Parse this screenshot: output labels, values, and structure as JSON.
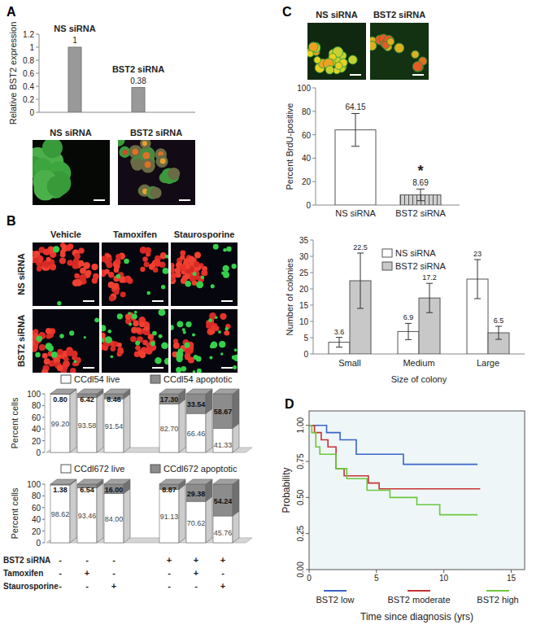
{
  "figure": {
    "panel_labels": [
      "A",
      "B",
      "C",
      "D"
    ],
    "images": {
      "A": [
        "NS siRNA",
        "BST2 siRNA"
      ],
      "B": {
        "columns": [
          "Vehicle",
          "Tamoxifen",
          "Staurosporine"
        ],
        "rows": [
          "NS siRNA",
          "BST2 siRNA"
        ]
      },
      "C": [
        "NS siRNA",
        "BST2 siRNA"
      ]
    },
    "condition_table": {
      "rows": [
        {
          "label": "BST2 siRNA",
          "cells": [
            "-",
            "-",
            "-",
            "+",
            "+",
            "+"
          ]
        },
        {
          "label": "Tamoxifen",
          "cells": [
            "-",
            "+",
            "-",
            "-",
            "+",
            "-"
          ]
        },
        {
          "label": "Staurosporine",
          "cells": [
            "-",
            "-",
            "+",
            "-",
            "-",
            "+"
          ]
        }
      ]
    }
  },
  "chart_data": [
    {
      "type": "bar",
      "y_label": "Relative BST2 expression",
      "categories": [
        "NS siRNA",
        "BST2 siRNA"
      ],
      "values": [
        1,
        0.38
      ],
      "color": "#999999",
      "data_labels": true,
      "ylim": [
        0,
        1.2
      ],
      "yticks": [
        0,
        0.2,
        0.4,
        0.6,
        0.8,
        1,
        1.2
      ]
    },
    {
      "type": "bar3d",
      "stacked": true,
      "y_label": "Percent cells",
      "legend": "top",
      "data_labels": true,
      "categories": [
        null,
        null,
        null,
        null,
        null,
        null
      ],
      "series": [
        {
          "name": "CCdl54 live",
          "color": "#ffffff",
          "values": [
            99.2,
            93.58,
            91.54,
            82.7,
            66.46,
            41.33
          ],
          "value_labels": [
            "99.20",
            "93.58",
            "91.54",
            "82.70",
            "66.46",
            "41.33"
          ]
        },
        {
          "name": "CCdl54 apoptotic",
          "color": "#8c8c8c",
          "values": [
            0.8,
            6.42,
            8.46,
            17.3,
            33.54,
            58.67
          ],
          "value_labels": [
            "0.80",
            "6.42",
            "8.46",
            "17.30",
            "33.54",
            "58.67"
          ]
        }
      ],
      "ylim": [
        0,
        100
      ],
      "yticks": [
        0,
        20,
        40,
        60,
        80,
        100
      ]
    },
    {
      "type": "bar3d",
      "stacked": true,
      "y_label": "Percent cells",
      "legend": "top",
      "data_labels": true,
      "categories": [
        null,
        null,
        null,
        null,
        null,
        null
      ],
      "series": [
        {
          "name": "CCdl672 live",
          "color": "#ffffff",
          "values": [
            98.62,
            93.46,
            84,
            91.13,
            70.62,
            45.76
          ],
          "value_labels": [
            "98.62",
            "93.46",
            "84.00",
            "91.13",
            "70.62",
            "45.76"
          ]
        },
        {
          "name": "CCdl672 apoptotic",
          "color": "#8c8c8c",
          "values": [
            1.38,
            6.54,
            16,
            8.87,
            29.38,
            54.24
          ],
          "value_labels": [
            "1.38",
            "6.54",
            "16.00",
            "8.87",
            "29.38",
            "54.24"
          ]
        }
      ],
      "ylim": [
        0,
        100
      ],
      "yticks": [
        0,
        20,
        40,
        60,
        80,
        100
      ]
    },
    {
      "type": "bar",
      "y_label": "Percent BrdU-positive",
      "categories": [
        "NS siRNA",
        "BST2 siRNA"
      ],
      "values": [
        64.15,
        8.69
      ],
      "errors": [
        14,
        5
      ],
      "colors": [
        "#ffffff",
        "#d0d0d0"
      ],
      "annotation": "*",
      "data_labels": true,
      "ylim": [
        0,
        100
      ],
      "yticks": [
        0,
        20,
        40,
        60,
        80,
        100
      ]
    },
    {
      "type": "grouped_bar",
      "y_label": "Number of colonies",
      "x_label": "Size of colony",
      "categories": [
        "Small",
        "Medium",
        "Large"
      ],
      "legend": "top",
      "data_labels": true,
      "series": [
        {
          "name": "NS siRNA",
          "color": "#ffffff",
          "values": [
            3.6,
            6.9,
            23
          ],
          "errors": [
            1.5,
            2.5,
            6
          ]
        },
        {
          "name": "BST2 siRNA",
          "color": "#c8c8c8",
          "values": [
            22.5,
            17.2,
            6.5
          ],
          "errors": [
            8.5,
            4.5,
            2
          ]
        }
      ],
      "ylim": [
        0,
        35
      ],
      "yticks": [
        0,
        5,
        10,
        15,
        20,
        25,
        30,
        35
      ]
    },
    {
      "type": "line",
      "line_style": "step",
      "y_label": "Probability",
      "x_label": "Time since diagnosis (yrs)",
      "legend": "bottom",
      "xlim": [
        0,
        16
      ],
      "ylim": [
        0,
        1.1
      ],
      "xticks": [
        0,
        5,
        10,
        15
      ],
      "yticks": [
        {
          "value": 0,
          "label": "0.00"
        },
        {
          "value": 0.25,
          "label": "0.25"
        },
        {
          "value": 0.5,
          "label": "0.50"
        },
        {
          "value": 0.75,
          "label": "0.75"
        },
        {
          "value": 1,
          "label": "1.00"
        }
      ],
      "series": [
        {
          "name": "BST2 low",
          "color": "#3a64c8",
          "x": [
            0,
            1.3,
            2.3,
            3.5,
            7,
            12.5
          ],
          "values": [
            1,
            0.95,
            0.9,
            0.8,
            0.73,
            0.73
          ]
        },
        {
          "name": "BST2 moderate",
          "color": "#c83232",
          "x": [
            0,
            0.4,
            0.9,
            1.4,
            2,
            2.6,
            4.4,
            5.2,
            12.7
          ],
          "values": [
            1,
            0.95,
            0.9,
            0.85,
            0.7,
            0.65,
            0.6,
            0.56,
            0.56
          ]
        },
        {
          "name": "BST2 high",
          "color": "#6cc83c",
          "x": [
            0,
            0.2,
            0.5,
            0.8,
            2,
            2.8,
            4.3,
            6,
            8,
            9.7,
            12.5
          ],
          "values": [
            1,
            0.95,
            0.85,
            0.8,
            0.7,
            0.63,
            0.55,
            0.5,
            0.45,
            0.38,
            0.38
          ]
        }
      ]
    }
  ]
}
